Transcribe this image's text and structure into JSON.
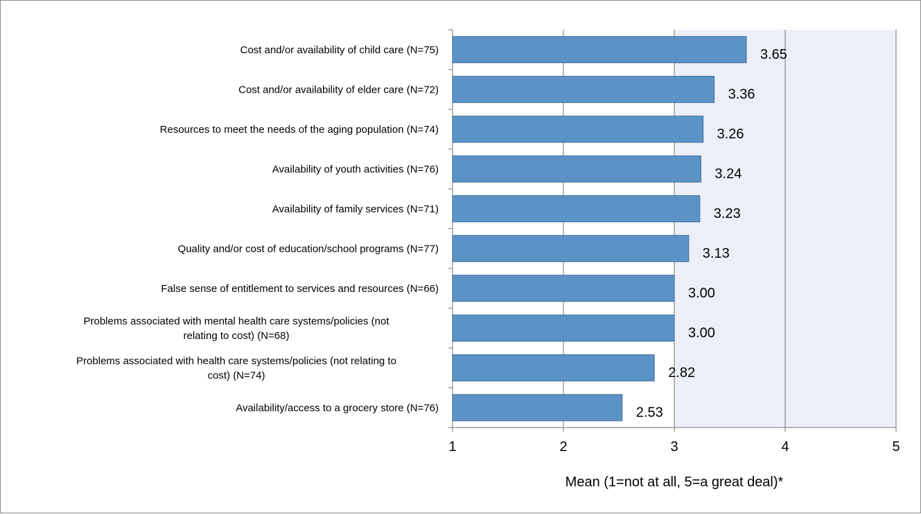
{
  "chart_data": {
    "type": "bar",
    "orientation": "horizontal",
    "categories": [
      [
        "Cost and/or availability of child care (N=75)"
      ],
      [
        "Cost and/or availability of elder care (N=72)"
      ],
      [
        "Resources to meet the needs of the aging population (N=74)"
      ],
      [
        "Availability of youth activities (N=76)"
      ],
      [
        "Availability of family services (N=71)"
      ],
      [
        "Quality and/or cost of education/school programs (N=77)"
      ],
      [
        "False sense of entitlement to services and resources (N=66)"
      ],
      [
        "Problems associated with mental health care systems/policies (not",
        "relating to cost) (N=68)"
      ],
      [
        "Problems associated with health care systems/policies (not relating to",
        "cost) (N=74)"
      ],
      [
        "Availability/access to a grocery store (N=76)"
      ]
    ],
    "values": [
      3.65,
      3.36,
      3.26,
      3.24,
      3.23,
      3.13,
      3.0,
      3.0,
      2.82,
      2.53
    ],
    "value_labels": [
      "3.65",
      "3.36",
      "3.26",
      "3.24",
      "3.23",
      "3.13",
      "3.00",
      "3.00",
      "2.82",
      "2.53"
    ],
    "xlim": [
      1,
      5
    ],
    "xticks": [
      "1",
      "2",
      "3",
      "4",
      "5"
    ],
    "xlabel": "Mean (1=not at all, 5=a great deal)*",
    "grid": true,
    "bar_color": "#5b93c6",
    "bar_edge_color": "#3d6d9a",
    "shaded_region": [
      3,
      5
    ],
    "shaded_color": "#eceff7"
  }
}
